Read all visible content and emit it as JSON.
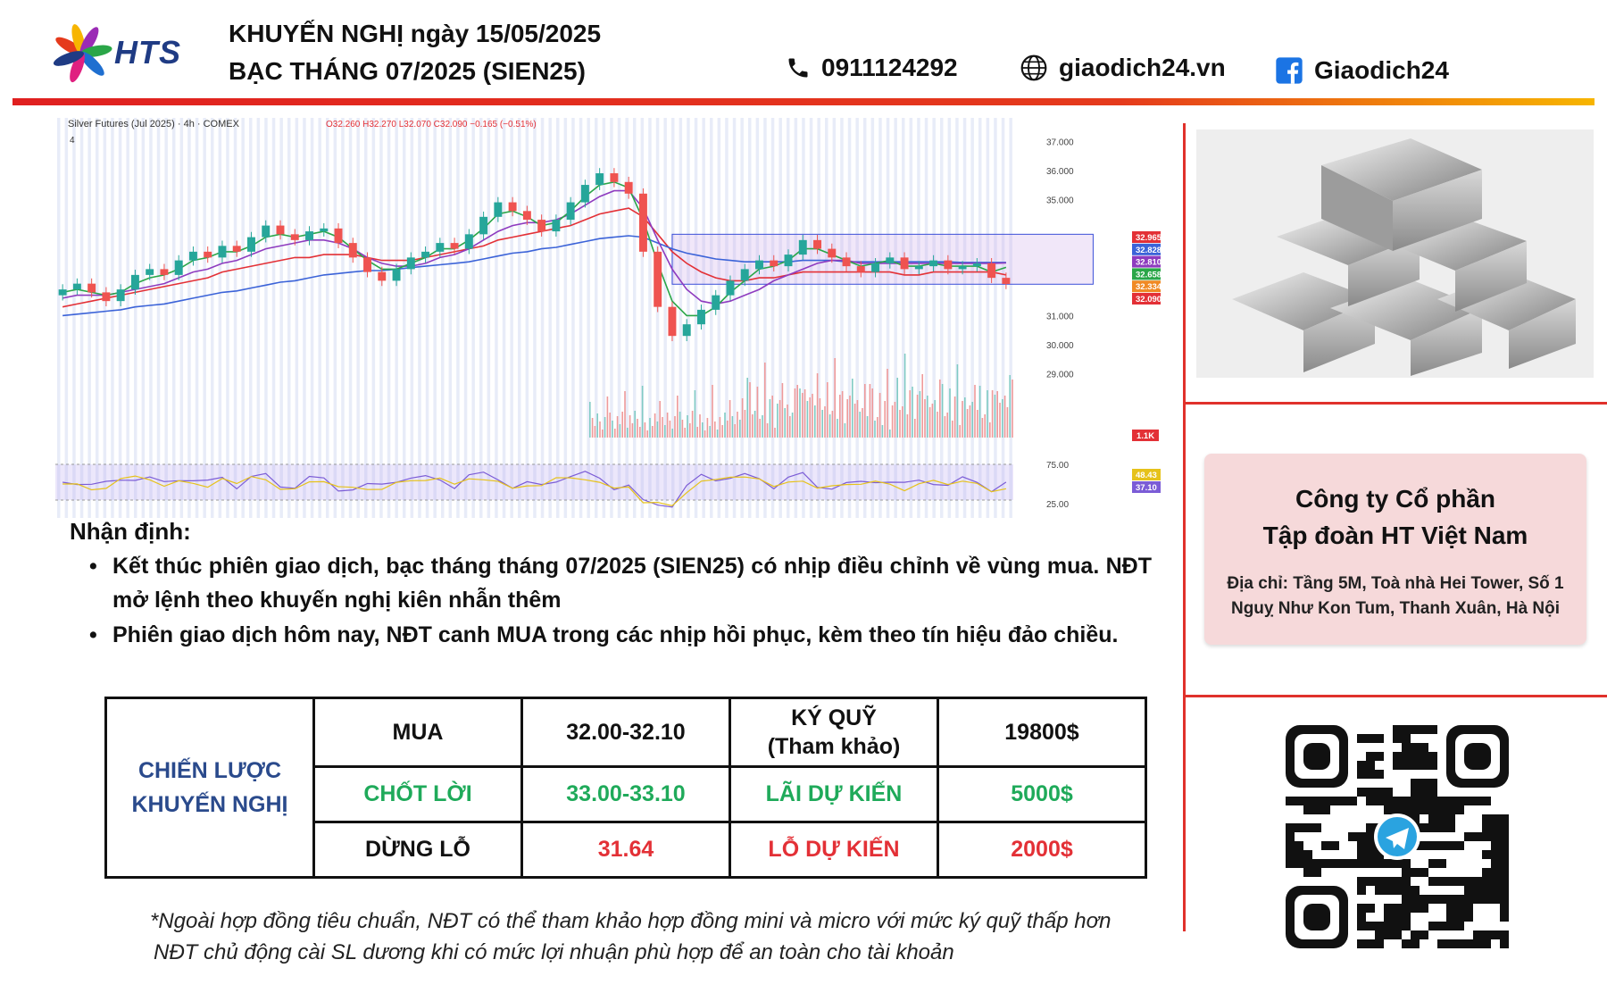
{
  "header": {
    "title_line1": "KHUYẾN NGHỊ ngày 15/05/2025",
    "title_line2": "BẠC THÁNG 07/2025 (SIEN25)",
    "brand": "HTS",
    "phone": "0911124292",
    "website": "giaodich24.vn",
    "facebook": "Giaodich24",
    "icons": [
      "phone-icon",
      "globe-icon",
      "facebook-icon"
    ],
    "colors": {
      "rule_start": "#e02020",
      "rule_end": "#f7b500",
      "brand_blue": "#1f3b84"
    }
  },
  "chart_data": {
    "type": "candlestick",
    "title": "Silver Futures (Jul 2025) · 4h · COMEX",
    "legend_counter": "4",
    "ohlc_label": "O32.260 H32.270 L32.070 C32.090 −0.165 (−0.51%)",
    "ylim": [
      25.0,
      37.5
    ],
    "y_ticks": [
      "37.000",
      "36.000",
      "35.000",
      "31.000",
      "30.000",
      "29.000"
    ],
    "price_tags": [
      {
        "label": "32.965",
        "color": "#e33036"
      },
      {
        "label": "32.828",
        "color": "#3b63d8"
      },
      {
        "label": "32.810",
        "color": "#8e3bbf"
      },
      {
        "label": "32.658",
        "color": "#2aa648"
      },
      {
        "label": "32.334",
        "color": "#f08a24"
      },
      {
        "label": "32.090",
        "color": "#e33036"
      }
    ],
    "volume_tag": "1.1K",
    "rsi_ticks": [
      "75.00",
      "25.00"
    ],
    "rsi_tags": [
      {
        "label": "48.43",
        "color": "#e6c21a"
      },
      {
        "label": "37.10",
        "color": "#7b5cd6"
      }
    ],
    "range_box": {
      "low": 32.08,
      "high": 33.8
    },
    "series": [
      {
        "kind": "close",
        "values": [
          31.9,
          32.1,
          31.8,
          31.5,
          31.9,
          32.4,
          32.6,
          32.4,
          32.9,
          33.2,
          33.0,
          33.4,
          33.2,
          33.7,
          34.1,
          33.8,
          33.6,
          33.9,
          34.0,
          33.5,
          33.0,
          32.5,
          32.2,
          32.6,
          33.0,
          33.2,
          33.5,
          33.3,
          33.8,
          34.4,
          34.9,
          34.6,
          34.3,
          33.9,
          34.3,
          34.9,
          35.5,
          35.9,
          35.6,
          35.2,
          33.2,
          31.3,
          30.3,
          30.7,
          31.2,
          31.7,
          32.2,
          32.6,
          32.9,
          32.7,
          33.1,
          33.6,
          33.3,
          33.0,
          32.7,
          32.5,
          32.8,
          33.0,
          32.6,
          32.7,
          32.9,
          32.6,
          32.7,
          32.8,
          32.3,
          32.09
        ]
      },
      {
        "kind": "ma_red",
        "values": [
          31.3,
          31.4,
          31.5,
          31.6,
          31.7,
          31.8,
          31.9,
          32.0,
          32.1,
          32.2,
          32.3,
          32.5,
          32.6,
          32.7,
          32.8,
          32.9,
          33.0,
          33.0,
          33.1,
          33.1,
          33.1,
          33.0,
          32.9,
          32.9,
          32.9,
          33.0,
          33.1,
          33.2,
          33.3,
          33.4,
          33.6,
          33.7,
          33.8,
          33.9,
          34.0,
          34.1,
          34.3,
          34.5,
          34.6,
          34.7,
          34.4,
          33.8,
          33.2,
          32.8,
          32.5,
          32.3,
          32.2,
          32.2,
          32.3,
          32.3,
          32.4,
          32.5,
          32.5,
          32.5,
          32.5,
          32.5,
          32.5,
          32.5,
          32.4,
          32.4,
          32.5,
          32.5,
          32.5,
          32.5,
          32.5,
          32.4
        ]
      },
      {
        "kind": "ma_blue",
        "values": [
          31.0,
          31.05,
          31.1,
          31.15,
          31.2,
          31.3,
          31.35,
          31.4,
          31.5,
          31.6,
          31.7,
          31.8,
          31.85,
          31.95,
          32.05,
          32.15,
          32.2,
          32.3,
          32.4,
          32.45,
          32.5,
          32.55,
          32.55,
          32.6,
          32.65,
          32.7,
          32.75,
          32.8,
          32.85,
          32.95,
          33.05,
          33.15,
          33.2,
          33.3,
          33.35,
          33.45,
          33.55,
          33.65,
          33.7,
          33.75,
          33.7,
          33.5,
          33.3,
          33.15,
          33.05,
          32.95,
          32.9,
          32.85,
          32.85,
          32.85,
          32.85,
          32.9,
          32.9,
          32.9,
          32.85,
          32.85,
          32.85,
          32.85,
          32.85,
          32.85,
          32.85,
          32.85,
          32.83,
          32.83,
          32.83,
          32.83
        ]
      },
      {
        "kind": "ma_purple",
        "values": [
          31.6,
          31.7,
          31.7,
          31.7,
          31.8,
          31.9,
          32.0,
          32.1,
          32.3,
          32.5,
          32.6,
          32.8,
          32.9,
          33.1,
          33.3,
          33.4,
          33.5,
          33.6,
          33.6,
          33.5,
          33.3,
          33.0,
          32.8,
          32.7,
          32.7,
          32.8,
          33.0,
          33.1,
          33.3,
          33.6,
          33.9,
          34.1,
          34.2,
          34.2,
          34.3,
          34.5,
          34.8,
          35.1,
          35.3,
          35.3,
          34.7,
          33.6,
          32.6,
          31.9,
          31.5,
          31.4,
          31.5,
          31.7,
          31.9,
          32.2,
          32.4,
          32.6,
          32.8,
          32.9,
          32.9,
          32.8,
          32.8,
          32.8,
          32.8,
          32.8,
          32.8,
          32.8,
          32.8,
          32.8,
          32.8,
          32.81
        ]
      },
      {
        "kind": "ma_green",
        "values": [
          31.8,
          31.9,
          31.8,
          31.7,
          31.8,
          32.1,
          32.3,
          32.4,
          32.6,
          32.9,
          33.0,
          33.2,
          33.2,
          33.4,
          33.7,
          33.8,
          33.7,
          33.8,
          33.9,
          33.7,
          33.3,
          32.9,
          32.6,
          32.6,
          32.8,
          33.0,
          33.3,
          33.3,
          33.6,
          34.0,
          34.5,
          34.6,
          34.4,
          34.1,
          34.2,
          34.6,
          35.1,
          35.5,
          35.6,
          35.4,
          34.3,
          32.8,
          31.5,
          31.0,
          31.0,
          31.3,
          31.8,
          32.2,
          32.6,
          32.7,
          32.9,
          33.3,
          33.3,
          33.1,
          32.9,
          32.7,
          32.8,
          32.9,
          32.7,
          32.7,
          32.8,
          32.7,
          32.7,
          32.7,
          32.5,
          32.66
        ]
      }
    ]
  },
  "right_panel": {
    "image_alt": "silver-bars",
    "company_line1": "Công ty Cổ phần",
    "company_line2": "Tập đoàn HT Việt Nam",
    "address_line1": "Địa chỉ: Tầng 5M, Toà nhà Hei Tower, Số 1",
    "address_line2": "Nguỵ Như Kon Tum, Thanh Xuân, Hà Nội"
  },
  "analysis": {
    "heading": "Nhận định:",
    "bullets": [
      "Kết thúc phiên giao dịch, bạc tháng tháng 07/2025 (SIEN25) có nhịp điều chỉnh về vùng mua. NĐT mở lệnh theo khuyến nghị kiên nhẫn thêm",
      "Phiên giao dịch hôm nay, NĐT canh MUA trong các nhịp hồi phục, kèm theo tín hiệu đảo chiều."
    ]
  },
  "strategy": {
    "label_line1": "CHIẾN LƯỢC",
    "label_line2": "KHUYẾN NGHỊ",
    "rows": [
      {
        "action": "MUA",
        "price": "32.00-32.10",
        "metric_line1": "KÝ QUỸ",
        "metric_line2": "(Tham khảo)",
        "amount": "19800$"
      },
      {
        "action": "CHỐT LỜI",
        "price": "33.00-33.10",
        "metric_line1": "LÃI DỰ KIẾN",
        "metric_line2": "",
        "amount": "5000$"
      },
      {
        "action": "DỪNG LỖ",
        "price": "31.64",
        "metric_line1": "LỖ DỰ KIẾN",
        "metric_line2": "",
        "amount": "2000$"
      }
    ],
    "colors": {
      "label": "#2a4a8c",
      "profit": "#1faa5a",
      "loss": "#e33036"
    }
  },
  "footnote": {
    "line1": "*Ngoài hợp đồng tiêu chuẩn, NĐT có thể tham khảo hợp đồng mini và micro với mức ký quỹ thấp hơn",
    "line2": "NĐT chủ động cài SL dương khi có mức lợi nhuận phù hợp để an toàn cho tài khoản"
  }
}
